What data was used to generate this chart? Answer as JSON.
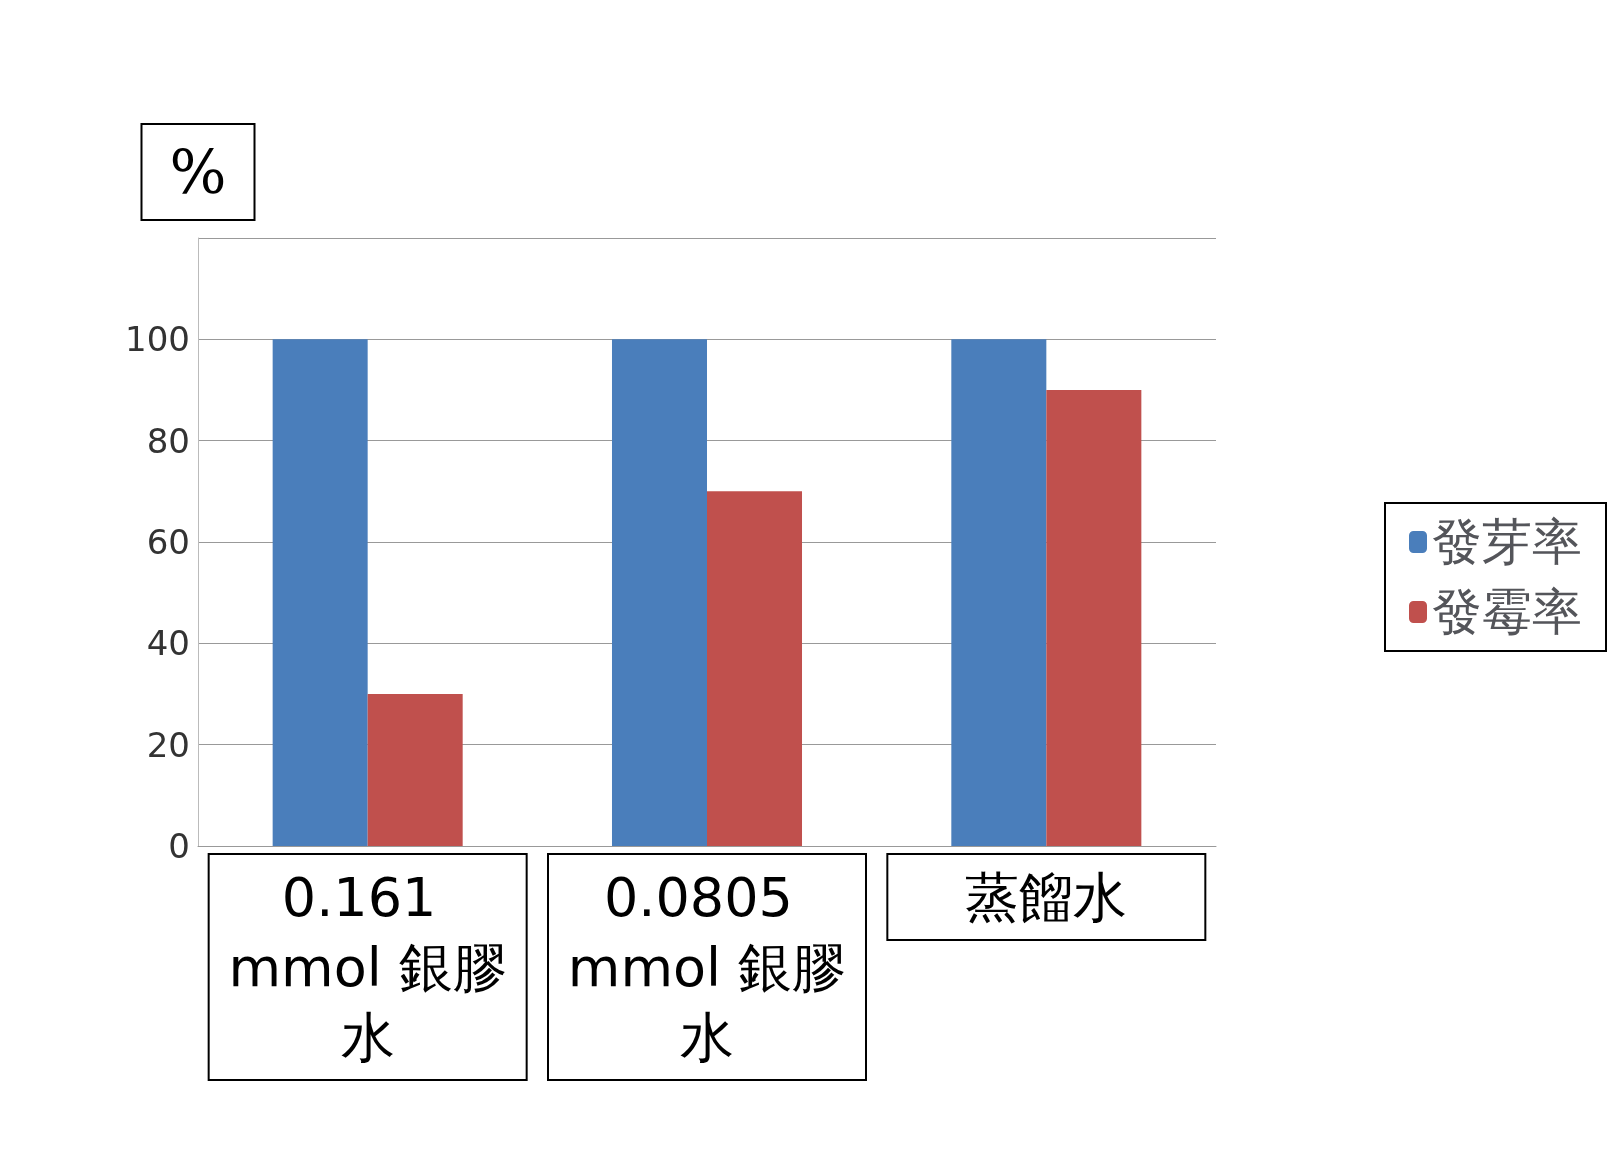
{
  "chart_data": {
    "type": "bar",
    "ylabel": "%",
    "categories": [
      "0.161 mmol 銀膠水",
      "0.0805 mmol 銀膠水",
      "蒸餾水"
    ],
    "series": [
      {
        "name": "發芽率",
        "color": "#4a7ebb",
        "values": [
          100,
          100,
          100
        ]
      },
      {
        "name": "發霉率",
        "color": "#c0504d",
        "values": [
          30,
          70,
          90
        ]
      }
    ],
    "ylim": [
      0,
      120
    ],
    "yticks": [
      0,
      20,
      40,
      60,
      80,
      {
        "value": 100,
        "label": "100"
      },
      {
        "value": 120,
        "label": null
      }
    ],
    "grid": "y",
    "legend": "right"
  }
}
